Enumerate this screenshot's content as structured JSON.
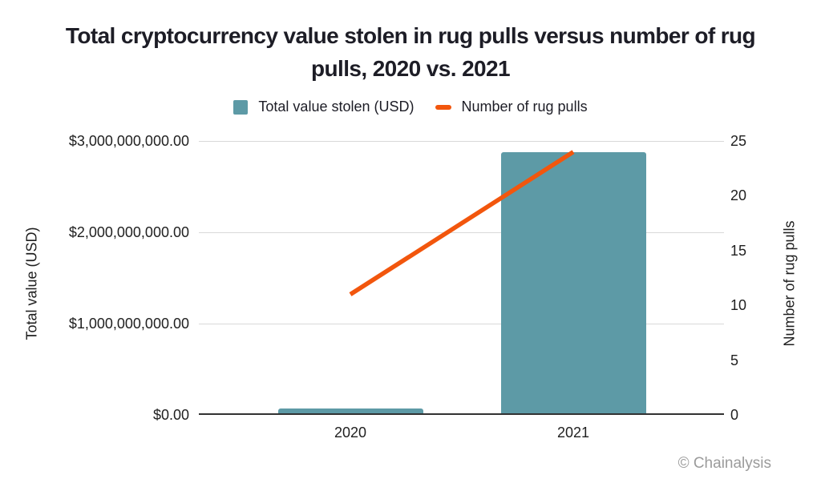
{
  "title_lines": [
    "Total cryptocurrency value stolen in rug pulls versus number of rug",
    "pulls, 2020 vs. 2021"
  ],
  "legend": [
    {
      "label": "Total value stolen (USD)",
      "swatch": "square",
      "color": "#5d9aa6"
    },
    {
      "label": "Number of rug pulls",
      "swatch": "dash",
      "color": "#f2560d"
    }
  ],
  "footer": {
    "credit": "© Chainalysis"
  },
  "colors": {
    "bar": "#5d9aa6",
    "line": "#f2560d",
    "grid": "#d9d9d9",
    "axis": "#323232",
    "text": "#1d1d26",
    "tick_text": "#1f1f1f",
    "muted": "#9b9b9b"
  },
  "chart_data": {
    "type": "bar",
    "title": "Total cryptocurrency value stolen in rug pulls versus number of rug pulls, 2020 vs. 2021",
    "categories": [
      "2020",
      "2021"
    ],
    "series": [
      {
        "name": "Total value stolen (USD)",
        "type": "bar",
        "axis": "left",
        "color": "#5d9aa6",
        "values": [
          70000000,
          2880000000
        ]
      },
      {
        "name": "Number of rug pulls",
        "type": "line",
        "axis": "right",
        "color": "#f2560d",
        "values": [
          11,
          24
        ]
      }
    ],
    "left_axis": {
      "label": "Total value (USD)",
      "lim": [
        0,
        3000000000
      ],
      "ticks": [
        {
          "value": 0,
          "label": "$0.00"
        },
        {
          "value": 1000000000,
          "label": "$1,000,000,000.00"
        },
        {
          "value": 2000000000,
          "label": "$2,000,000,000.00"
        },
        {
          "value": 3000000000,
          "label": "$3,000,000,000.00"
        }
      ]
    },
    "right_axis": {
      "label": "Number of rug pulls",
      "lim": [
        0,
        25
      ],
      "ticks": [
        0,
        5,
        10,
        15,
        20,
        25
      ]
    },
    "legend_position": "top",
    "grid": "horizontal"
  }
}
